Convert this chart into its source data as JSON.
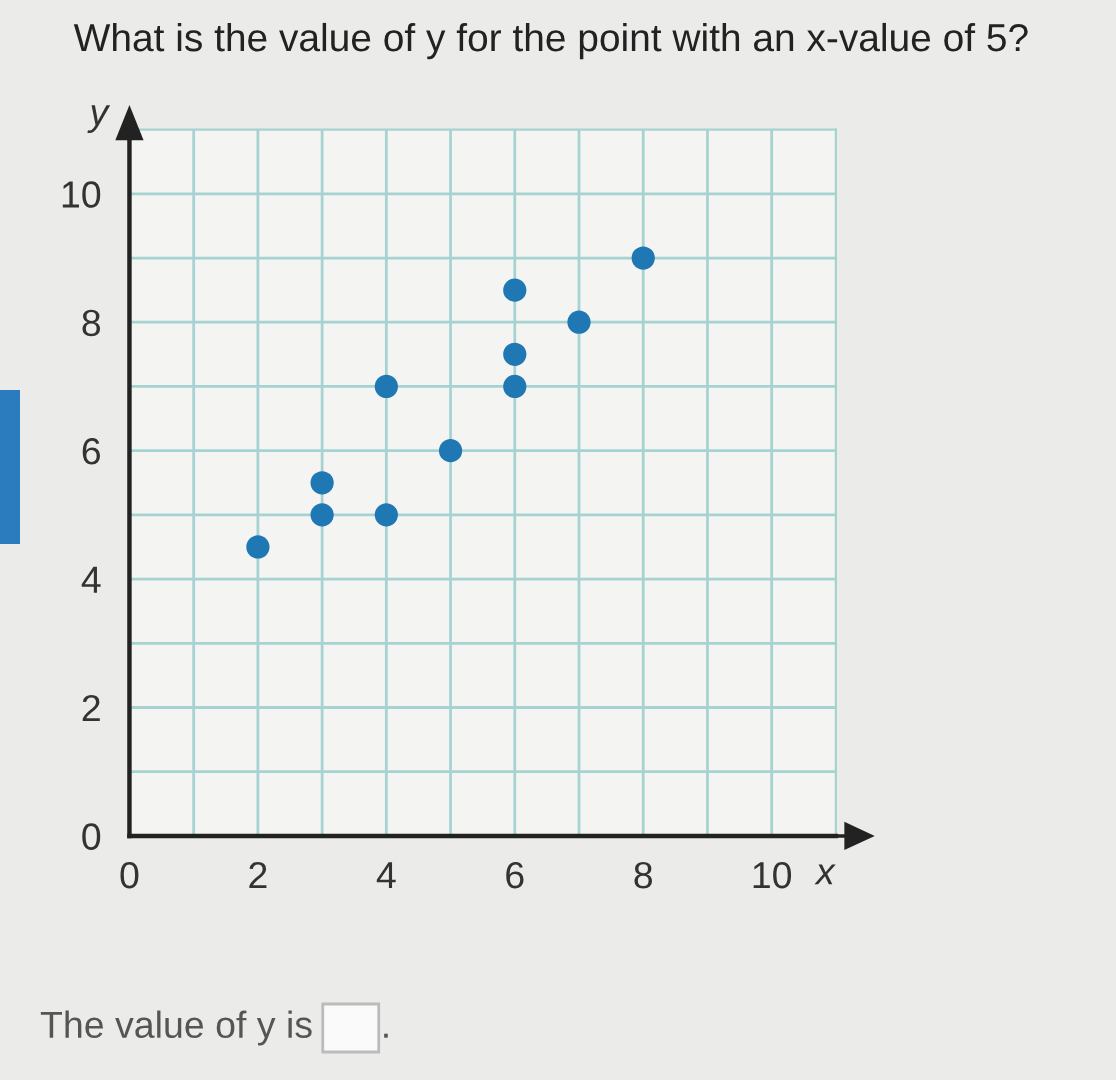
{
  "chart_data": {
    "type": "scatter",
    "title": "What is the value of y for the point with an x-value of 5?",
    "xlabel": "x",
    "ylabel": "y",
    "annotations": [
      "The value of y is",
      "."
    ],
    "x": [
      2,
      3,
      3,
      4,
      4,
      5,
      6,
      6,
      6,
      7,
      8
    ],
    "values": [
      4.5,
      5,
      5.5,
      5,
      7,
      6,
      7,
      7.5,
      8.5,
      8,
      9
    ],
    "color": "#1f78b4",
    "marker": "circle",
    "xlim": [
      0,
      11
    ],
    "ylim": [
      0,
      11
    ],
    "xticks": [
      0,
      {
        "value": 1,
        "label": null
      },
      2,
      {
        "value": 3,
        "label": null
      },
      4,
      {
        "value": 5,
        "label": null
      },
      6,
      {
        "value": 7,
        "label": null
      },
      8,
      {
        "value": 9,
        "label": null
      },
      10
    ],
    "yticks": [
      0,
      {
        "value": 1,
        "label": null
      },
      2,
      {
        "value": 3,
        "label": null
      },
      4,
      {
        "value": 5,
        "label": null
      },
      6,
      {
        "value": 7,
        "label": null
      },
      8,
      {
        "value": 9,
        "label": null
      },
      10
    ],
    "grid": true
  }
}
